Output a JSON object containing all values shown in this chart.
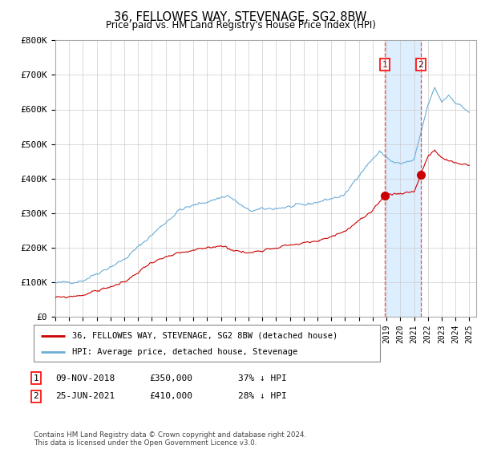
{
  "title": "36, FELLOWES WAY, STEVENAGE, SG2 8BW",
  "subtitle": "Price paid vs. HM Land Registry's House Price Index (HPI)",
  "legend_line1": "36, FELLOWES WAY, STEVENAGE, SG2 8BW (detached house)",
  "legend_line2": "HPI: Average price, detached house, Stevenage",
  "transaction1_date": "09-NOV-2018",
  "transaction1_price": 350000,
  "transaction1_pct": "37% ↓ HPI",
  "transaction2_date": "25-JUN-2021",
  "transaction2_price": 410000,
  "transaction2_pct": "28% ↓ HPI",
  "footer": "Contains HM Land Registry data © Crown copyright and database right 2024.\nThis data is licensed under the Open Government Licence v3.0.",
  "hpi_color": "#6baed6",
  "price_color": "#cc0000",
  "marker_color": "#cc0000",
  "vline_color": "#ff4444",
  "shade_color": "#ddeeff",
  "background_color": "#ffffff",
  "grid_color": "#cccccc",
  "ylim": [
    0,
    800000
  ],
  "yticks": [
    0,
    100000,
    200000,
    300000,
    400000,
    500000,
    600000,
    700000,
    800000
  ],
  "ytick_labels": [
    "£0",
    "£100K",
    "£200K",
    "£300K",
    "£400K",
    "£500K",
    "£600K",
    "£700K",
    "£800K"
  ],
  "transaction1_year": 2018.87,
  "transaction2_year": 2021.48
}
